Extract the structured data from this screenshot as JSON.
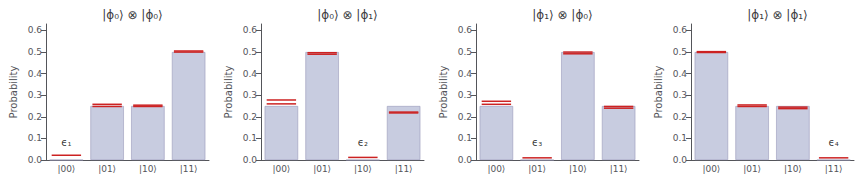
{
  "chart_data": [
    {
      "type": "bar",
      "title": "|ϕ₀⟩ ⊗ |ϕ₀⟩",
      "categories": [
        "|00⟩",
        "|01⟩",
        "|10⟩",
        "|11⟩"
      ],
      "series": [
        {
          "type": "bar",
          "color": "#c8cce0",
          "values": [
            0.0,
            0.25,
            0.25,
            0.5
          ]
        },
        {
          "type": "scatter",
          "marker": "hline",
          "color": "#cc2222",
          "values": [
            0.022,
            0.258,
            0.254,
            0.505
          ]
        },
        {
          "type": "scatter",
          "marker": "hline",
          "color": "#cc2222",
          "values": [
            null,
            0.248,
            0.248,
            0.5
          ]
        }
      ],
      "annotations": [
        {
          "text": "ϵ₁",
          "x": "|00⟩",
          "y": 0.06
        }
      ],
      "y_label": "Probability",
      "ylim": [
        0,
        0.63
      ],
      "yticks": [
        {
          "value": 0.0,
          "label": "0.0"
        },
        0.1,
        0.2,
        0.3,
        0.4,
        0.5,
        0.6
      ],
      "grid": false
    },
    {
      "type": "bar",
      "title": "|ϕ₀⟩ ⊗ |ϕ₁⟩",
      "categories": [
        "|00⟩",
        "|01⟩",
        "|10⟩",
        "|11⟩"
      ],
      "series": [
        {
          "type": "bar",
          "color": "#c8cce0",
          "values": [
            0.25,
            0.5,
            0.0,
            0.25
          ]
        },
        {
          "type": "scatter",
          "marker": "hline",
          "color": "#cc2222",
          "values": [
            0.278,
            0.497,
            0.012,
            0.222
          ]
        },
        {
          "type": "scatter",
          "marker": "hline",
          "color": "#cc2222",
          "values": [
            0.26,
            0.49,
            null,
            0.218
          ]
        }
      ],
      "annotations": [
        {
          "text": "ϵ₂",
          "x": "|10⟩",
          "y": 0.06
        }
      ],
      "y_label": "Probability",
      "ylim": [
        0,
        0.63
      ],
      "yticks": [
        {
          "value": 0.0,
          "label": "0.0"
        },
        0.1,
        0.2,
        0.3,
        0.4,
        0.5,
        0.6
      ],
      "grid": false
    },
    {
      "type": "bar",
      "title": "|ϕ₁⟩ ⊗ |ϕ₀⟩",
      "categories": [
        "|00⟩",
        "|01⟩",
        "|10⟩",
        "|11⟩"
      ],
      "series": [
        {
          "type": "bar",
          "color": "#c8cce0",
          "values": [
            0.25,
            0.0,
            0.5,
            0.25
          ]
        },
        {
          "type": "scatter",
          "marker": "hline",
          "color": "#cc2222",
          "values": [
            0.272,
            0.01,
            0.5,
            0.248
          ]
        },
        {
          "type": "scatter",
          "marker": "hline",
          "color": "#cc2222",
          "values": [
            0.258,
            null,
            0.492,
            0.24
          ]
        }
      ],
      "annotations": [
        {
          "text": "ϵ₃",
          "x": "|01⟩",
          "y": 0.06
        }
      ],
      "y_label": "Probability",
      "ylim": [
        0,
        0.63
      ],
      "yticks": [
        {
          "value": 0.0,
          "label": "0.0"
        },
        0.1,
        0.2,
        0.3,
        0.4,
        0.5,
        0.6
      ],
      "grid": false
    },
    {
      "type": "bar",
      "title": "|ϕ₁⟩ ⊗ |ϕ₁⟩",
      "categories": [
        "|00⟩",
        "|01⟩",
        "|10⟩",
        "|11⟩"
      ],
      "series": [
        {
          "type": "bar",
          "color": "#c8cce0",
          "values": [
            0.5,
            0.25,
            0.25,
            0.0
          ]
        },
        {
          "type": "scatter",
          "marker": "hline",
          "color": "#cc2222",
          "values": [
            0.502,
            0.255,
            0.245,
            0.01
          ]
        },
        {
          "type": "scatter",
          "marker": "hline",
          "color": "#cc2222",
          "values": [
            0.498,
            0.248,
            0.238,
            null
          ]
        }
      ],
      "annotations": [
        {
          "text": "ϵ₄",
          "x": "|11⟩",
          "y": 0.06
        }
      ],
      "y_label": "Probability",
      "ylim": [
        0,
        0.63
      ],
      "yticks": [
        {
          "value": 0.0,
          "label": "0.0"
        },
        0.1,
        0.2,
        0.3,
        0.4,
        0.5,
        0.6
      ],
      "grid": false
    }
  ]
}
